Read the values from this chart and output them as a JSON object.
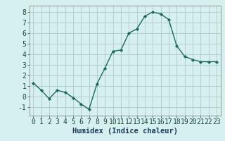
{
  "x": [
    0,
    1,
    2,
    3,
    4,
    5,
    6,
    7,
    8,
    9,
    10,
    11,
    12,
    13,
    14,
    15,
    16,
    17,
    18,
    19,
    20,
    21,
    22,
    23
  ],
  "y": [
    1.3,
    0.6,
    -0.2,
    0.6,
    0.4,
    -0.1,
    -0.7,
    -1.2,
    1.2,
    2.7,
    4.3,
    4.4,
    6.0,
    6.4,
    7.6,
    8.0,
    7.8,
    7.3,
    4.8,
    3.8,
    3.5,
    3.3,
    3.3,
    3.3
  ],
  "line_color": "#1a6b5a",
  "marker": "D",
  "marker_size": 2.2,
  "bg_color": "#d6f0f0",
  "grid_color": "#afc8c8",
  "xlabel": "Humidex (Indice chaleur)",
  "xlabel_fontsize": 7.5,
  "tick_fontsize": 7.0,
  "ylim": [
    -1.8,
    8.6
  ],
  "xlim": [
    -0.5,
    23.5
  ],
  "yticks": [
    -1,
    0,
    1,
    2,
    3,
    4,
    5,
    6,
    7,
    8
  ],
  "xticks": [
    0,
    1,
    2,
    3,
    4,
    5,
    6,
    7,
    8,
    9,
    10,
    11,
    12,
    13,
    14,
    15,
    16,
    17,
    18,
    19,
    20,
    21,
    22,
    23
  ],
  "line_width": 1.0
}
